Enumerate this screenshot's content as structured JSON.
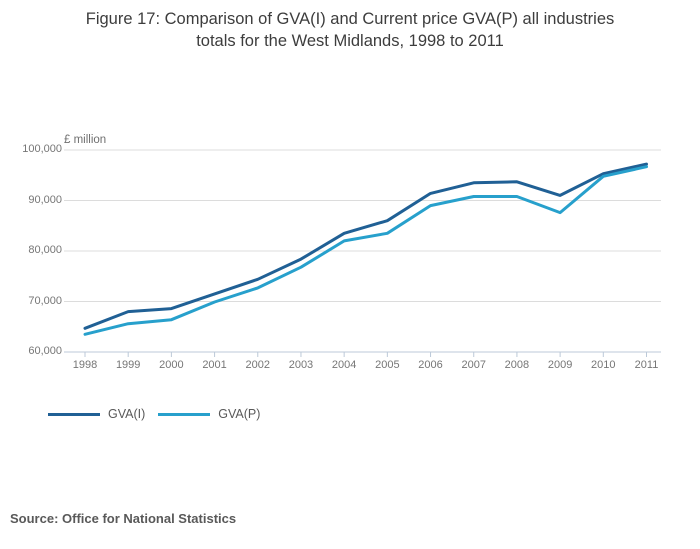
{
  "title": {
    "line1": "Figure 17: Comparison of GVA(I) and Current price GVA(P) all industries",
    "line2": "totals for the West Midlands, 1998 to 2011"
  },
  "chart_data": {
    "type": "line",
    "title": "Figure 17: Comparison of GVA(I) and Current price GVA(P) all industries totals for the West Midlands, 1998 to 2011",
    "ylabel": "£ million",
    "xlabel": "",
    "categories": [
      "1998",
      "1999",
      "2000",
      "2001",
      "2002",
      "2003",
      "2004",
      "2005",
      "2006",
      "2007",
      "2008",
      "2009",
      "2010",
      "2011"
    ],
    "series": [
      {
        "name": "GVA(I)",
        "color": "#206095",
        "values": [
          64700,
          68000,
          68600,
          71500,
          74400,
          78400,
          83500,
          86000,
          91400,
          93500,
          93700,
          91000,
          95300,
          97200
        ]
      },
      {
        "name": "GVA(P)",
        "color": "#27A0CC",
        "values": [
          63500,
          65600,
          66400,
          69900,
          72700,
          76800,
          82000,
          83500,
          89000,
          90800,
          90800,
          87600,
          94800,
          96700
        ]
      }
    ],
    "ylim": [
      60000,
      100000
    ],
    "yticks": [
      {
        "label": "100,000",
        "value": 100000
      },
      {
        "label": "90,000",
        "value": 90000
      },
      {
        "label": "80,000",
        "value": 80000
      },
      {
        "label": "70,000",
        "value": 70000
      },
      {
        "label": "60,000",
        "value": 60000
      }
    ],
    "grid": "horizontal",
    "legend_position": "bottom-left",
    "gridline_color": "#dcdcdc",
    "axis_color": "#bcc9d8"
  },
  "legend": {
    "items": [
      {
        "label": "GVA(I)",
        "color": "#206095"
      },
      {
        "label": "GVA(P)",
        "color": "#27A0CC"
      }
    ]
  },
  "source": {
    "text": "Source: Office for National Statistics"
  }
}
